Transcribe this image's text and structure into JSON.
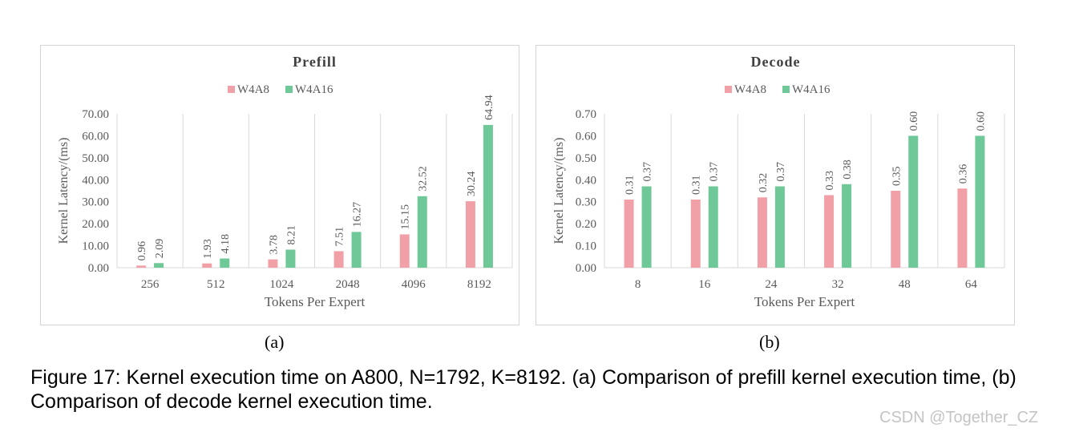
{
  "colors": {
    "w4a8": "#f2a0a8",
    "w4a16": "#6fc897",
    "grid": "#d9d9d9",
    "axis_text": "#595959",
    "title_text": "#404040"
  },
  "chart_data": [
    {
      "type": "bar",
      "title": "Prefill",
      "xlabel": "Tokens Per Expert",
      "ylabel": "Kernel Latency/(ms)",
      "categories": [
        "256",
        "512",
        "1024",
        "2048",
        "4096",
        "8192"
      ],
      "series": [
        {
          "name": "W4A8",
          "values": [
            0.96,
            1.93,
            3.78,
            7.51,
            15.15,
            30.24
          ],
          "labels": [
            "0.96",
            "1.93",
            "3.78",
            "7.51",
            "15.15",
            "30.24"
          ]
        },
        {
          "name": "W4A16",
          "values": [
            2.09,
            4.18,
            8.21,
            16.27,
            32.52,
            64.94
          ],
          "labels": [
            "2.09",
            "4.18",
            "8.21",
            "16.27",
            "32.52",
            "64.94"
          ]
        }
      ],
      "ylim": [
        0,
        70
      ],
      "yticks": [
        "0.00",
        "10.00",
        "20.00",
        "30.00",
        "40.00",
        "50.00",
        "60.00",
        "70.00"
      ],
      "legend": "top-center",
      "grid": "vertical"
    },
    {
      "type": "bar",
      "title": "Decode",
      "xlabel": "Tokens Per Expert",
      "ylabel": "Kernel Latency/(ms)",
      "categories": [
        "8",
        "16",
        "24",
        "32",
        "48",
        "64"
      ],
      "series": [
        {
          "name": "W4A8",
          "values": [
            0.31,
            0.31,
            0.32,
            0.33,
            0.35,
            0.36
          ],
          "labels": [
            "0.31",
            "0.31",
            "0.32",
            "0.33",
            "0.35",
            "0.36"
          ]
        },
        {
          "name": "W4A16",
          "values": [
            0.37,
            0.37,
            0.37,
            0.38,
            0.6,
            0.6
          ],
          "labels": [
            "0.37",
            "0.37",
            "0.37",
            "0.38",
            "0.60",
            "0.60"
          ]
        }
      ],
      "ylim": [
        0,
        0.7
      ],
      "yticks": [
        "0.00",
        "0.10",
        "0.20",
        "0.30",
        "0.40",
        "0.50",
        "0.60",
        "0.70"
      ],
      "legend": "top-center",
      "grid": "vertical"
    }
  ],
  "labels": {
    "a": "(a)",
    "b": "(b)"
  },
  "caption": "Figure 17: Kernel execution time on A800, N=1792, K=8192. (a) Comparison of prefill kernel execution time, (b) Comparison of decode kernel execution time.",
  "watermark": "CSDN @Together_CZ"
}
